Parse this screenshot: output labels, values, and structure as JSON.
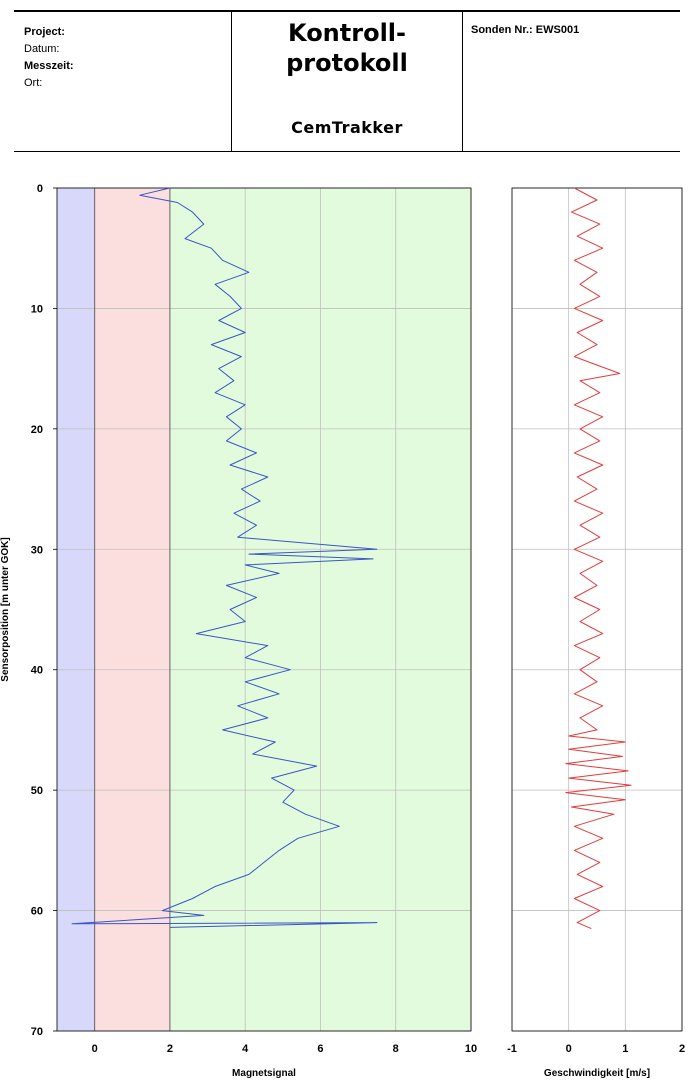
{
  "header": {
    "project_label": "Project:",
    "datum_label": "Datum:",
    "messzeit_label": "Messzeit:",
    "ort_label": "Ort:",
    "title_line1": "Kontroll-",
    "title_line2": "protokoll",
    "subtitle": "CemTrakker",
    "sonden": "Sonden Nr.: EWS001"
  },
  "colors": {
    "band_blue": "#d8d8fb",
    "band_red": "#fbdede",
    "band_green": "#e2fbdc",
    "magnet_line": "#3b55c8",
    "speed_line": "#e43b3b",
    "grid": "#bfbfbf"
  },
  "chart_data": [
    {
      "type": "line",
      "orientation": "vertical-depth",
      "xlabel": "Magnetsignal",
      "ylabel": "Sensorposition [m unter GOK]",
      "xlim": [
        -1,
        10
      ],
      "ylim": [
        0,
        70
      ],
      "y_inverted": true,
      "xticks": [
        0,
        2,
        4,
        6,
        8,
        10
      ],
      "yticks": [
        0,
        10,
        20,
        30,
        40,
        50,
        60,
        70
      ],
      "grid": true,
      "bands": [
        {
          "from": -1,
          "to": 0,
          "color": "blue"
        },
        {
          "from": 0,
          "to": 2,
          "color": "red"
        },
        {
          "from": 2,
          "to": 10,
          "color": "green"
        }
      ],
      "series": [
        {
          "points": [
            [
              2.0,
              0.0
            ],
            [
              1.2,
              0.6
            ],
            [
              2.2,
              1.2
            ],
            [
              2.6,
              2.0
            ],
            [
              2.9,
              3.0
            ],
            [
              2.4,
              4.2
            ],
            [
              3.1,
              5.0
            ],
            [
              3.4,
              6.0
            ],
            [
              4.1,
              7.0
            ],
            [
              3.2,
              8.0
            ],
            [
              3.6,
              9.0
            ],
            [
              3.9,
              10.0
            ],
            [
              3.3,
              11.0
            ],
            [
              4.0,
              12.0
            ],
            [
              3.1,
              13.0
            ],
            [
              3.9,
              14.0
            ],
            [
              3.3,
              15.0
            ],
            [
              3.7,
              16.0
            ],
            [
              3.2,
              17.0
            ],
            [
              4.0,
              18.0
            ],
            [
              3.5,
              19.0
            ],
            [
              3.9,
              20.0
            ],
            [
              3.5,
              21.0
            ],
            [
              4.3,
              22.0
            ],
            [
              3.6,
              23.0
            ],
            [
              4.6,
              24.0
            ],
            [
              3.9,
              25.0
            ],
            [
              4.4,
              26.0
            ],
            [
              3.7,
              27.0
            ],
            [
              4.3,
              28.0
            ],
            [
              3.8,
              29.0
            ],
            [
              7.5,
              30.0
            ],
            [
              4.1,
              30.4
            ],
            [
              7.4,
              30.8
            ],
            [
              4.0,
              31.3
            ],
            [
              4.9,
              32.0
            ],
            [
              3.5,
              33.0
            ],
            [
              4.3,
              34.0
            ],
            [
              3.6,
              35.0
            ],
            [
              4.0,
              36.0
            ],
            [
              2.7,
              37.0
            ],
            [
              4.6,
              38.0
            ],
            [
              4.0,
              39.0
            ],
            [
              5.2,
              40.0
            ],
            [
              4.0,
              41.0
            ],
            [
              4.9,
              42.0
            ],
            [
              3.8,
              43.0
            ],
            [
              4.6,
              44.0
            ],
            [
              3.4,
              45.0
            ],
            [
              4.8,
              46.0
            ],
            [
              4.2,
              47.0
            ],
            [
              5.9,
              48.0
            ],
            [
              4.7,
              49.0
            ],
            [
              5.3,
              50.0
            ],
            [
              5.0,
              51.0
            ],
            [
              5.6,
              52.0
            ],
            [
              6.5,
              53.0
            ],
            [
              5.4,
              54.0
            ],
            [
              4.9,
              55.0
            ],
            [
              4.5,
              56.0
            ],
            [
              4.1,
              57.0
            ],
            [
              3.2,
              58.0
            ],
            [
              2.6,
              59.0
            ],
            [
              1.8,
              60.0
            ],
            [
              2.9,
              60.4
            ],
            [
              -0.6,
              61.1
            ],
            [
              7.5,
              61.0
            ],
            [
              2.0,
              61.4
            ]
          ]
        }
      ]
    },
    {
      "type": "line",
      "orientation": "vertical-depth",
      "xlabel": "Geschwindigkeit [m/s]",
      "ylabel": "",
      "xlim": [
        -1,
        2
      ],
      "ylim": [
        0,
        70
      ],
      "y_inverted": true,
      "xticks": [
        -1,
        0,
        1,
        2
      ],
      "yticks": [
        0,
        10,
        20,
        30,
        40,
        50,
        60,
        70
      ],
      "grid": true,
      "series": [
        {
          "points": [
            [
              0.1,
              0.0
            ],
            [
              0.5,
              1.0
            ],
            [
              0.05,
              2.0
            ],
            [
              0.55,
              3.0
            ],
            [
              0.15,
              4.0
            ],
            [
              0.6,
              5.0
            ],
            [
              0.1,
              6.0
            ],
            [
              0.5,
              7.0
            ],
            [
              0.2,
              8.0
            ],
            [
              0.55,
              9.0
            ],
            [
              0.1,
              10.0
            ],
            [
              0.6,
              11.0
            ],
            [
              0.15,
              12.0
            ],
            [
              0.5,
              13.0
            ],
            [
              0.1,
              14.0
            ],
            [
              0.9,
              15.4
            ],
            [
              0.2,
              16.0
            ],
            [
              0.55,
              17.0
            ],
            [
              0.1,
              18.0
            ],
            [
              0.6,
              19.0
            ],
            [
              0.2,
              20.0
            ],
            [
              0.55,
              21.0
            ],
            [
              0.1,
              22.0
            ],
            [
              0.6,
              23.0
            ],
            [
              0.15,
              24.0
            ],
            [
              0.5,
              25.0
            ],
            [
              0.1,
              26.0
            ],
            [
              0.6,
              27.0
            ],
            [
              0.2,
              28.0
            ],
            [
              0.55,
              29.0
            ],
            [
              0.1,
              30.0
            ],
            [
              0.6,
              31.0
            ],
            [
              0.2,
              32.0
            ],
            [
              0.5,
              33.0
            ],
            [
              0.1,
              34.0
            ],
            [
              0.55,
              35.0
            ],
            [
              0.2,
              36.0
            ],
            [
              0.6,
              37.0
            ],
            [
              0.1,
              38.0
            ],
            [
              0.55,
              39.0
            ],
            [
              0.2,
              40.0
            ],
            [
              0.5,
              41.0
            ],
            [
              0.1,
              42.0
            ],
            [
              0.6,
              43.0
            ],
            [
              0.2,
              44.0
            ],
            [
              0.5,
              45.0
            ],
            [
              0.0,
              45.5
            ],
            [
              1.0,
              46.0
            ],
            [
              0.0,
              46.6
            ],
            [
              0.95,
              47.2
            ],
            [
              -0.05,
              47.8
            ],
            [
              1.05,
              48.4
            ],
            [
              0.0,
              49.0
            ],
            [
              1.1,
              49.6
            ],
            [
              -0.05,
              50.2
            ],
            [
              1.0,
              50.8
            ],
            [
              0.05,
              51.4
            ],
            [
              0.8,
              52.0
            ],
            [
              0.1,
              53.0
            ],
            [
              0.6,
              54.0
            ],
            [
              0.1,
              55.0
            ],
            [
              0.55,
              56.0
            ],
            [
              0.15,
              57.0
            ],
            [
              0.6,
              58.0
            ],
            [
              0.1,
              59.0
            ],
            [
              0.55,
              60.0
            ],
            [
              0.15,
              61.0
            ],
            [
              0.4,
              61.5
            ]
          ]
        }
      ]
    }
  ]
}
